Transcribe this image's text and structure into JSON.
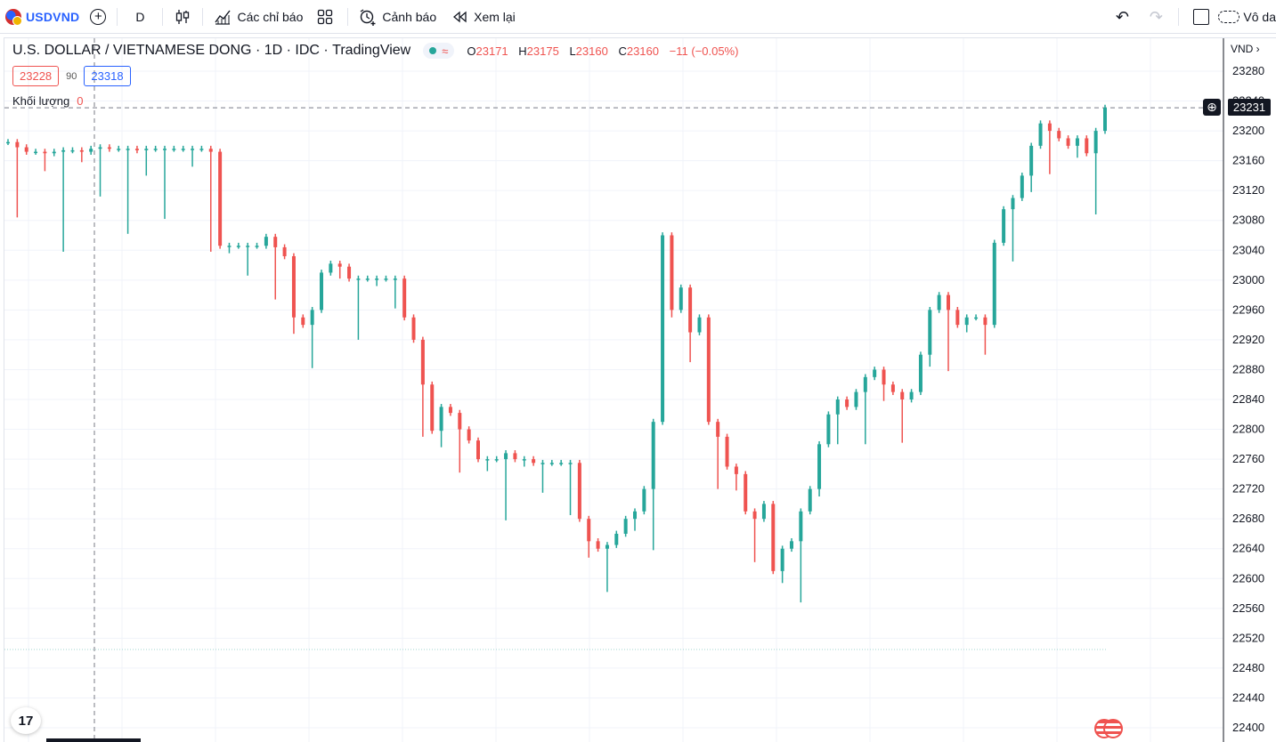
{
  "toolbar": {
    "symbol": "USDVND",
    "interval": "D",
    "indicators_label": "Các chỉ báo",
    "alert_label": "Cảnh báo",
    "replay_label": "Xem lại",
    "right_label": "Vô da"
  },
  "legend": {
    "title": "U.S. DOLLAR / VIETNAMESE DONG",
    "timeframe": "1D",
    "exchange": "IDC",
    "source": "TradingView",
    "approx_icon": "≈",
    "open_key": "O",
    "open": "23171",
    "high_key": "H",
    "high": "23175",
    "low_key": "L",
    "low": "23160",
    "close_key": "C",
    "close": "23160",
    "change": "−11 (−0.05%)",
    "bid": "23228",
    "spread": "90",
    "ask": "23318",
    "volume_label": "Khối lượng",
    "volume_value": "0"
  },
  "price_scale": {
    "currency": "VND",
    "current_price": "23231",
    "crosshair_icon": "⊕"
  },
  "logo_text": "17",
  "colors": {
    "up": "#26a69a",
    "down": "#ef5350",
    "grid": "#f0f3fa",
    "text": "#131722",
    "accent": "#2962ff"
  },
  "chart_data": {
    "type": "bar",
    "subtype": "ohlc-candlestick",
    "title": "U.S. DOLLAR / VIETNAMESE DONG · 1D · IDC · TradingView",
    "ylabel": "VND",
    "ylim": [
      22400,
      23280
    ],
    "yticks": [
      23280,
      23240,
      23200,
      23160,
      23120,
      23080,
      23040,
      23000,
      22960,
      22920,
      22880,
      22840,
      22800,
      22760,
      22720,
      22680,
      22640,
      22600,
      22560,
      22520,
      22480,
      22440,
      22400
    ],
    "last_price": 23231,
    "reference_line": 22505,
    "grid": true,
    "legend_position": "top-left",
    "series_close": [
      23185,
      23178,
      23172,
      23172,
      23170,
      23172,
      23174,
      23174,
      23172,
      23176,
      23178,
      23176,
      23176,
      23176,
      23174,
      23176,
      23176,
      23176,
      23176,
      23176,
      23176,
      23176,
      23172,
      23046,
      23046,
      23046,
      23046,
      23046,
      23058,
      23044,
      23032,
      22950,
      22940,
      22960,
      23010,
      23022,
      23018,
      23002,
      23002,
      23002,
      23002,
      23002,
      23002,
      22950,
      22920,
      22860,
      22798,
      22830,
      22822,
      22800,
      22785,
      22760,
      22760,
      22760,
      22768,
      22760,
      22760,
      22755,
      22755,
      22755,
      22755,
      22755,
      22680,
      22650,
      22640,
      22645,
      22660,
      22680,
      22690,
      22720,
      22810,
      23060,
      22960,
      22990,
      22930,
      22950,
      22810,
      22790,
      22750,
      22740,
      22690,
      22680,
      22700,
      22610,
      22640,
      22650,
      22690,
      22720,
      22780,
      22820,
      22840,
      22830,
      22850,
      22870,
      22880,
      22860,
      22850,
      22840,
      22850,
      22900,
      22960,
      22980,
      22960,
      22940,
      22950,
      22950,
      22940,
      23050,
      23095,
      23110,
      23140,
      23180,
      23210,
      23200,
      23190,
      23180,
      23190,
      23170,
      23200,
      23231
    ]
  }
}
